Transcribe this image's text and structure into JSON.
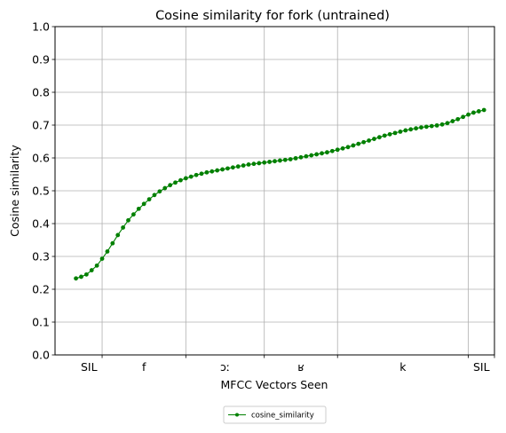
{
  "chart_data": {
    "type": "line",
    "title": "Cosine similarity for fork (untrained)",
    "xlabel": "MFCC Vectors Seen",
    "ylabel": "Cosine similarity",
    "ylim": [
      0.0,
      1.0
    ],
    "yticks": [
      "0.0",
      "0.1",
      "0.2",
      "0.3",
      "0.4",
      "0.5",
      "0.6",
      "0.7",
      "0.8",
      "0.9",
      "1.0"
    ],
    "xlim": [
      -4,
      80
    ],
    "grid": true,
    "line_color": "#008000",
    "marker": "circle",
    "legend": {
      "placement": "below",
      "entries": [
        "cosine_similarity"
      ]
    },
    "segment_boundaries": [
      5,
      21,
      36,
      50,
      75,
      80
    ],
    "segment_labels": [
      {
        "label": "SIL",
        "center": 2.5
      },
      {
        "label": "f",
        "center": 13
      },
      {
        "label": "ɔː",
        "center": 28.5
      },
      {
        "label": "ʁ",
        "center": 43
      },
      {
        "label": "k",
        "center": 62.5
      },
      {
        "label": "SIL",
        "center": 77.5
      }
    ],
    "series": [
      {
        "name": "cosine_similarity",
        "x": [
          0,
          1,
          2,
          3,
          4,
          5,
          6,
          7,
          8,
          9,
          10,
          11,
          12,
          13,
          14,
          15,
          16,
          17,
          18,
          19,
          20,
          21,
          22,
          23,
          24,
          25,
          26,
          27,
          28,
          29,
          30,
          31,
          32,
          33,
          34,
          35,
          36,
          37,
          38,
          39,
          40,
          41,
          42,
          43,
          44,
          45,
          46,
          47,
          48,
          49,
          50,
          51,
          52,
          53,
          54,
          55,
          56,
          57,
          58,
          59,
          60,
          61,
          62,
          63,
          64,
          65,
          66,
          67,
          68,
          69,
          70,
          71,
          72,
          73,
          74,
          75,
          76,
          77,
          78
        ],
        "values": [
          0.233,
          0.238,
          0.245,
          0.258,
          0.272,
          0.293,
          0.315,
          0.34,
          0.365,
          0.388,
          0.41,
          0.428,
          0.445,
          0.46,
          0.474,
          0.487,
          0.498,
          0.508,
          0.517,
          0.525,
          0.532,
          0.538,
          0.543,
          0.548,
          0.552,
          0.556,
          0.559,
          0.562,
          0.565,
          0.568,
          0.571,
          0.574,
          0.577,
          0.58,
          0.582,
          0.584,
          0.586,
          0.588,
          0.59,
          0.592,
          0.594,
          0.596,
          0.599,
          0.602,
          0.605,
          0.608,
          0.611,
          0.614,
          0.617,
          0.621,
          0.625,
          0.629,
          0.633,
          0.638,
          0.643,
          0.648,
          0.653,
          0.658,
          0.663,
          0.668,
          0.672,
          0.676,
          0.68,
          0.684,
          0.687,
          0.69,
          0.693,
          0.695,
          0.697,
          0.699,
          0.702,
          0.706,
          0.712,
          0.718,
          0.725,
          0.732,
          0.738,
          0.742,
          0.746
        ]
      }
    ]
  }
}
